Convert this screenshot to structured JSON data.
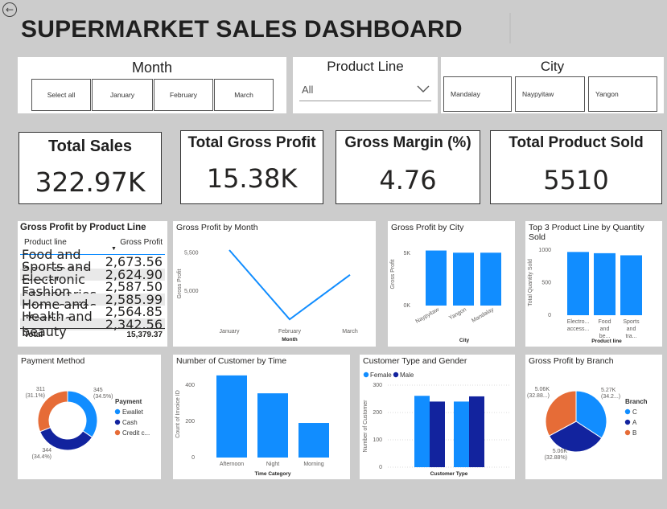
{
  "title": "SUPERMARKET SALES DASHBOARD",
  "colors": {
    "primary": "#118dff",
    "dark": "#12239e",
    "orange": "#e66c37",
    "bg": "#cccccc"
  },
  "slicers": {
    "month": {
      "title": "Month",
      "items": [
        "Select all",
        "January",
        "February",
        "March"
      ]
    },
    "product_line": {
      "title": "Product Line",
      "value": "All"
    },
    "city": {
      "title": "City",
      "items": [
        "Mandalay",
        "Naypyitaw",
        "Yangon"
      ]
    }
  },
  "kpis": {
    "total_sales": {
      "title": "Total Sales",
      "value": "322.97K"
    },
    "total_gross_profit": {
      "title": "Total Gross Profit",
      "value": "15.38K"
    },
    "gross_margin": {
      "title": "Gross Margin (%)",
      "value": "4.76"
    },
    "total_product_sold": {
      "title": "Total Product Sold",
      "value": "5510"
    }
  },
  "gp_table": {
    "title": "Gross Profit by Product Line",
    "headers": [
      "Product line",
      "Gross Profit"
    ],
    "rows": [
      [
        "Food and beverages",
        "2,673.56"
      ],
      [
        "Sports and travel",
        "2,624.90"
      ],
      [
        "Electronic accessories",
        "2,587.50"
      ],
      [
        "Fashion accessories",
        "2,585.99"
      ],
      [
        "Home and lifestyle",
        "2,564.85"
      ],
      [
        "Health and beauty",
        "2,342.56"
      ]
    ],
    "total": [
      "Total",
      "15,379.37"
    ]
  },
  "chart_data": [
    {
      "type": "line",
      "title": "Gross Profit by Month",
      "categories": [
        "January",
        "February",
        "March"
      ],
      "values": [
        5537,
        4630,
        5212
      ],
      "xlabel": "Month",
      "ylabel": "Gross Profit",
      "yticks": [
        "5,500",
        "5,000"
      ],
      "ylim": [
        4600,
        5600
      ]
    },
    {
      "type": "bar",
      "title": "Gross Profit by City",
      "categories": [
        "Naypyitaw",
        "Yangon",
        "Mandalay"
      ],
      "values": [
        5265,
        5057,
        5057
      ],
      "xlabel": "City",
      "ylabel": "Gross Profit",
      "yticks": [
        "5K",
        "0K"
      ],
      "ylim": [
        0,
        6000
      ]
    },
    {
      "type": "bar",
      "title": "Top 3 Product Line by Quantity Sold",
      "categories": [
        "Electro... access...",
        "Food and be...",
        "Sports and tra..."
      ],
      "values": [
        971,
        952,
        920
      ],
      "xlabel": "Product line",
      "ylabel": "Total Quantity Sold",
      "yticks": [
        "1000",
        "500",
        "0"
      ],
      "ylim": [
        0,
        1000
      ]
    },
    {
      "type": "pie",
      "title": "Payment Method",
      "legend_title": "Payment",
      "slices": [
        {
          "name": "Ewallet",
          "value": 345,
          "label": "345",
          "pct": "(34.5%)"
        },
        {
          "name": "Cash",
          "value": 344,
          "label": "344",
          "pct": "(34.4%)"
        },
        {
          "name": "Credit c...",
          "value": 311,
          "label": "311",
          "pct": "(31.1%)"
        }
      ]
    },
    {
      "type": "bar",
      "title": "Number of Customer by Time",
      "categories": [
        "Afternoon",
        "Night",
        "Morning"
      ],
      "values": [
        454,
        355,
        191
      ],
      "xlabel": "Time Category",
      "ylabel": "Count of Invoice ID",
      "yticks": [
        "400",
        "200",
        "0"
      ],
      "ylim": [
        0,
        480
      ]
    },
    {
      "type": "bar",
      "title": "Customer Type and Gender",
      "categories": [
        "",
        ""
      ],
      "xlabel": "Customer Type",
      "ylabel": "Number of Customer",
      "series": [
        {
          "name": "Female",
          "values": [
            261,
            240
          ]
        },
        {
          "name": "Male",
          "values": [
            240,
            259
          ]
        }
      ],
      "yticks": [
        "300",
        "200",
        "100",
        "0"
      ],
      "ylim": [
        0,
        300
      ]
    },
    {
      "type": "pie",
      "title": "Gross Profit by Branch",
      "legend_title": "Branch",
      "slices": [
        {
          "name": "C",
          "value": 5265,
          "label": "5.27K",
          "pct": "(34.2...)"
        },
        {
          "name": "A",
          "value": 5057,
          "label": "5.06K",
          "pct": "(32.88...)"
        },
        {
          "name": "B",
          "value": 5057,
          "label": "5.06K",
          "pct": "(32.88%)"
        }
      ]
    }
  ]
}
